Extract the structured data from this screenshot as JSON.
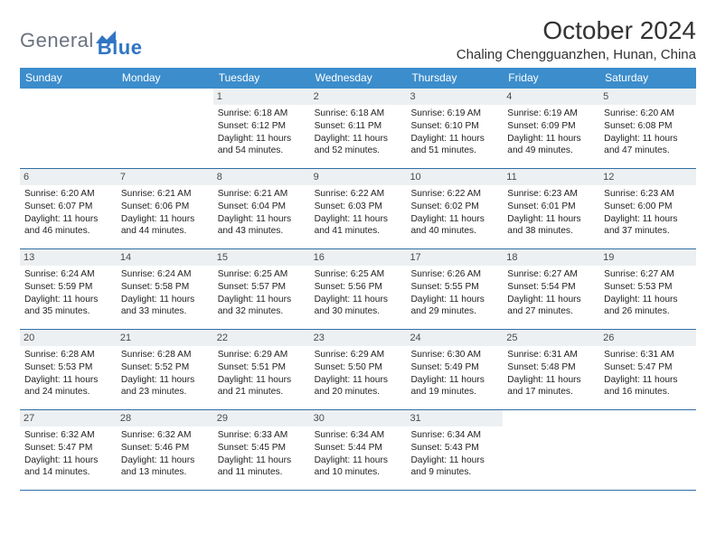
{
  "brand": {
    "part1": "General",
    "part2": "Blue"
  },
  "title": "October 2024",
  "location": "Chaling Chengguanzhen, Hunan, China",
  "colors": {
    "header_bg": "#3c8dcc",
    "header_text": "#ffffff",
    "daynum_bg": "#edf0f2",
    "week_border": "#2f6ea6",
    "logo_gray": "#6b7280",
    "logo_blue": "#2f75c4"
  },
  "dayNames": [
    "Sunday",
    "Monday",
    "Tuesday",
    "Wednesday",
    "Thursday",
    "Friday",
    "Saturday"
  ],
  "weeks": [
    [
      {
        "n": "",
        "empty": true
      },
      {
        "n": "",
        "empty": true
      },
      {
        "n": "1",
        "sr": "6:18 AM",
        "ss": "6:12 PM",
        "dl": "11 hours and 54 minutes."
      },
      {
        "n": "2",
        "sr": "6:18 AM",
        "ss": "6:11 PM",
        "dl": "11 hours and 52 minutes."
      },
      {
        "n": "3",
        "sr": "6:19 AM",
        "ss": "6:10 PM",
        "dl": "11 hours and 51 minutes."
      },
      {
        "n": "4",
        "sr": "6:19 AM",
        "ss": "6:09 PM",
        "dl": "11 hours and 49 minutes."
      },
      {
        "n": "5",
        "sr": "6:20 AM",
        "ss": "6:08 PM",
        "dl": "11 hours and 47 minutes."
      }
    ],
    [
      {
        "n": "6",
        "sr": "6:20 AM",
        "ss": "6:07 PM",
        "dl": "11 hours and 46 minutes."
      },
      {
        "n": "7",
        "sr": "6:21 AM",
        "ss": "6:06 PM",
        "dl": "11 hours and 44 minutes."
      },
      {
        "n": "8",
        "sr": "6:21 AM",
        "ss": "6:04 PM",
        "dl": "11 hours and 43 minutes."
      },
      {
        "n": "9",
        "sr": "6:22 AM",
        "ss": "6:03 PM",
        "dl": "11 hours and 41 minutes."
      },
      {
        "n": "10",
        "sr": "6:22 AM",
        "ss": "6:02 PM",
        "dl": "11 hours and 40 minutes."
      },
      {
        "n": "11",
        "sr": "6:23 AM",
        "ss": "6:01 PM",
        "dl": "11 hours and 38 minutes."
      },
      {
        "n": "12",
        "sr": "6:23 AM",
        "ss": "6:00 PM",
        "dl": "11 hours and 37 minutes."
      }
    ],
    [
      {
        "n": "13",
        "sr": "6:24 AM",
        "ss": "5:59 PM",
        "dl": "11 hours and 35 minutes."
      },
      {
        "n": "14",
        "sr": "6:24 AM",
        "ss": "5:58 PM",
        "dl": "11 hours and 33 minutes."
      },
      {
        "n": "15",
        "sr": "6:25 AM",
        "ss": "5:57 PM",
        "dl": "11 hours and 32 minutes."
      },
      {
        "n": "16",
        "sr": "6:25 AM",
        "ss": "5:56 PM",
        "dl": "11 hours and 30 minutes."
      },
      {
        "n": "17",
        "sr": "6:26 AM",
        "ss": "5:55 PM",
        "dl": "11 hours and 29 minutes."
      },
      {
        "n": "18",
        "sr": "6:27 AM",
        "ss": "5:54 PM",
        "dl": "11 hours and 27 minutes."
      },
      {
        "n": "19",
        "sr": "6:27 AM",
        "ss": "5:53 PM",
        "dl": "11 hours and 26 minutes."
      }
    ],
    [
      {
        "n": "20",
        "sr": "6:28 AM",
        "ss": "5:53 PM",
        "dl": "11 hours and 24 minutes."
      },
      {
        "n": "21",
        "sr": "6:28 AM",
        "ss": "5:52 PM",
        "dl": "11 hours and 23 minutes."
      },
      {
        "n": "22",
        "sr": "6:29 AM",
        "ss": "5:51 PM",
        "dl": "11 hours and 21 minutes."
      },
      {
        "n": "23",
        "sr": "6:29 AM",
        "ss": "5:50 PM",
        "dl": "11 hours and 20 minutes."
      },
      {
        "n": "24",
        "sr": "6:30 AM",
        "ss": "5:49 PM",
        "dl": "11 hours and 19 minutes."
      },
      {
        "n": "25",
        "sr": "6:31 AM",
        "ss": "5:48 PM",
        "dl": "11 hours and 17 minutes."
      },
      {
        "n": "26",
        "sr": "6:31 AM",
        "ss": "5:47 PM",
        "dl": "11 hours and 16 minutes."
      }
    ],
    [
      {
        "n": "27",
        "sr": "6:32 AM",
        "ss": "5:47 PM",
        "dl": "11 hours and 14 minutes."
      },
      {
        "n": "28",
        "sr": "6:32 AM",
        "ss": "5:46 PM",
        "dl": "11 hours and 13 minutes."
      },
      {
        "n": "29",
        "sr": "6:33 AM",
        "ss": "5:45 PM",
        "dl": "11 hours and 11 minutes."
      },
      {
        "n": "30",
        "sr": "6:34 AM",
        "ss": "5:44 PM",
        "dl": "11 hours and 10 minutes."
      },
      {
        "n": "31",
        "sr": "6:34 AM",
        "ss": "5:43 PM",
        "dl": "11 hours and 9 minutes."
      },
      {
        "n": "",
        "empty": true
      },
      {
        "n": "",
        "empty": true
      }
    ]
  ]
}
